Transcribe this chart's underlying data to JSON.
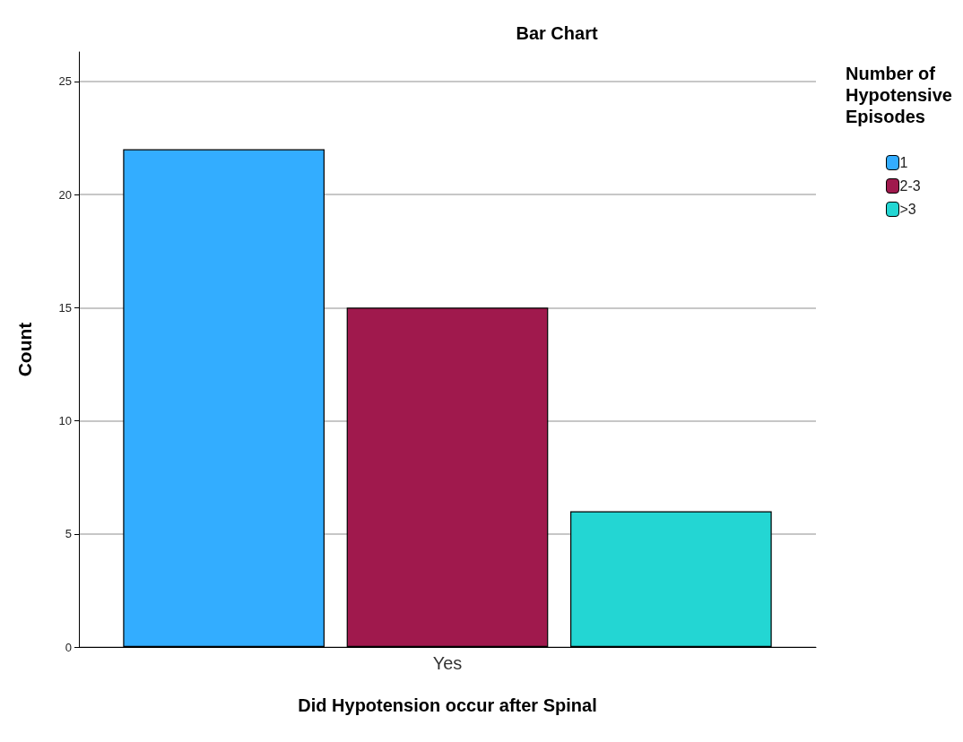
{
  "chart_data": {
    "type": "bar",
    "title": "Bar Chart",
    "xlabel": "Did Hypotension occur after Spinal",
    "ylabel": "Count",
    "legend_title": "Number of Hypotensive Episodes",
    "categories": [
      "Yes"
    ],
    "series": [
      {
        "name": "1",
        "color": "#33adff",
        "values": [
          22
        ]
      },
      {
        "name": "2-3",
        "color": "#a0194d",
        "values": [
          15
        ]
      },
      {
        "name": ">3",
        "color": "#23d6d3",
        "values": [
          6
        ]
      }
    ],
    "ylim": [
      0,
      26.3
    ],
    "yticks": [
      0,
      5,
      10,
      15,
      20,
      25
    ],
    "grid": "y",
    "legend": "top right"
  }
}
